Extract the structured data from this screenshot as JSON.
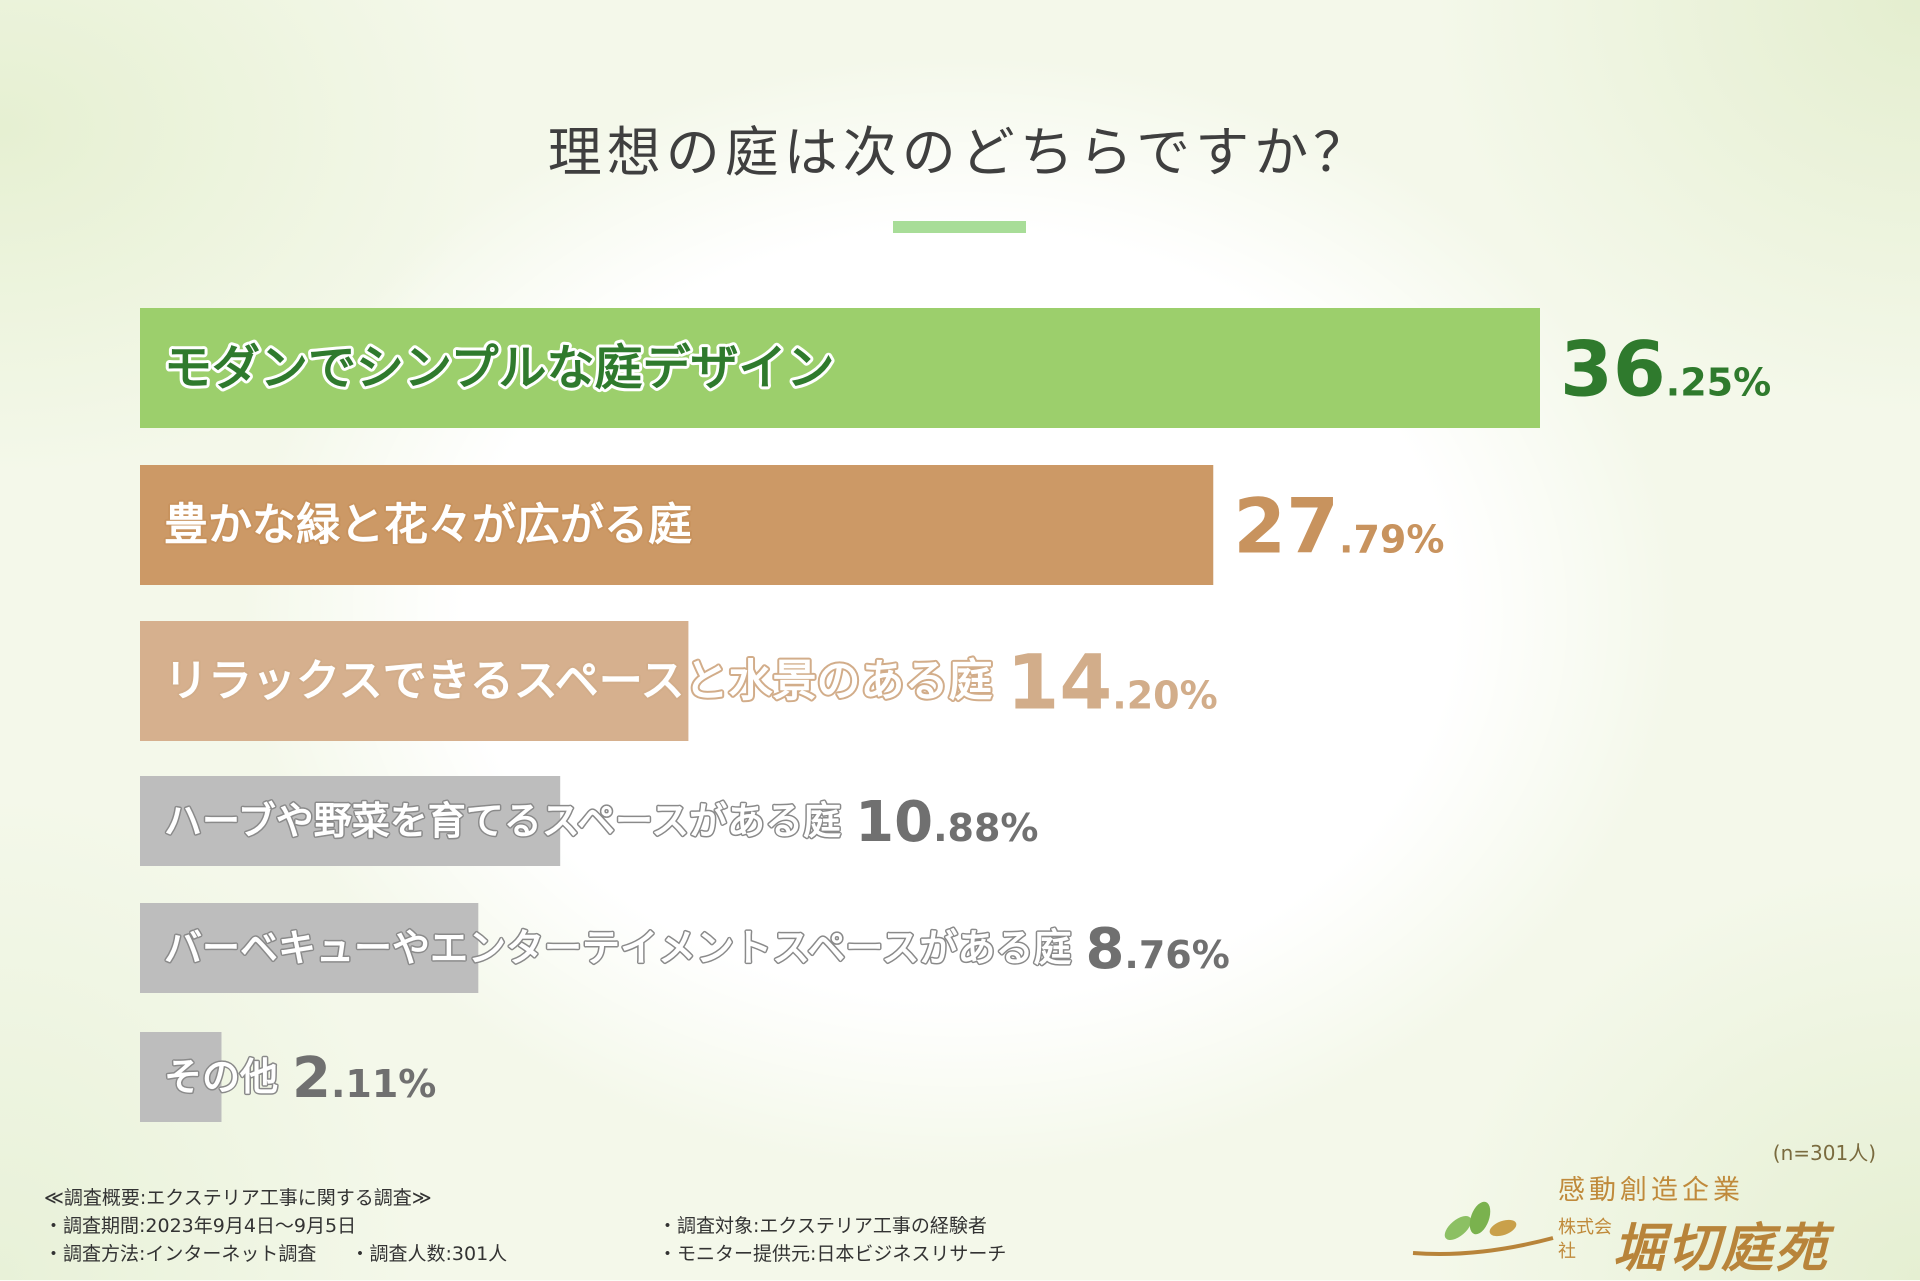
{
  "title": "理想の庭は次のどちらですか？",
  "sample_note": "(n=301人)",
  "footer": {
    "heading": "≪調査概要:エクステリア工事に関する調査≫",
    "period": "・調査期間:2023年9月4日〜9月5日",
    "method": "・調査方法:インターネット調査",
    "count": "・調査人数:301人",
    "target": "・調査対象:エクステリア工事の経験者",
    "provider": "・モニター提供元:日本ビジネスリサーチ"
  },
  "logo": {
    "tagline": "感動創造企業",
    "company_type": "株式会社",
    "name": "堀切庭苑"
  },
  "chart_data": {
    "type": "bar",
    "orientation": "horizontal",
    "categories": [
      "モダンでシンプルな庭デザイン",
      "豊かな緑と花々が広がる庭",
      "リラックスできるスペースと水景のある庭",
      "ハーブや野菜を育てるスペースがある庭",
      "バーベキューやエンターテイメントスペースがある庭",
      "その他"
    ],
    "values": [
      36.25,
      27.79,
      14.2,
      10.88,
      8.76,
      2.11
    ],
    "value_labels": [
      {
        "int": "36",
        "dec": ".25%"
      },
      {
        "int": "27",
        "dec": ".79%"
      },
      {
        "int": "14",
        "dec": ".20%"
      },
      {
        "int": "10",
        "dec": ".88%"
      },
      {
        "int": "8",
        "dec": ".76%"
      },
      {
        "int": "2",
        "dec": ".11%"
      }
    ],
    "colors": [
      "#9ccf6c",
      "#cc9966",
      "#d6b08e",
      "#bdbdbd",
      "#bdbdbd",
      "#bdbdbd"
    ],
    "value_colors": [
      "#2f7a2d",
      "#c8935e",
      "#d2ad8a",
      "#707070",
      "#707070",
      "#707070"
    ],
    "xlim": [
      0,
      36.25
    ],
    "unit": "%"
  }
}
